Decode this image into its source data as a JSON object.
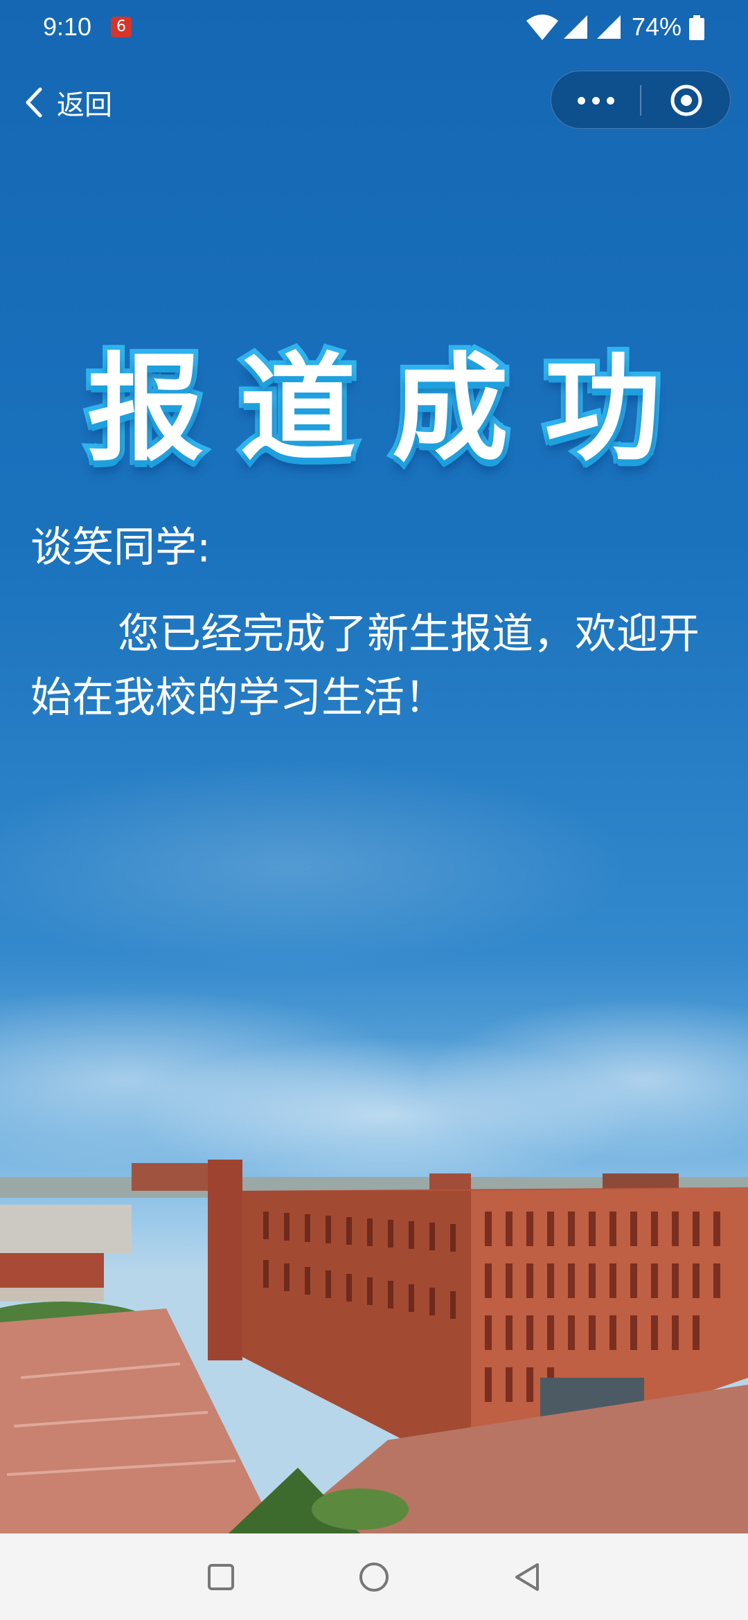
{
  "status_bar": {
    "time": "9:10",
    "battery": "74%",
    "app_badge": "6"
  },
  "nav": {
    "back_label": "返回"
  },
  "headline": "报道成功",
  "greeting": "谈笑同学:",
  "message": "您已经完成了新生报道，欢迎开始在我校的学习生活！",
  "icons": [
    "wifi-icon",
    "signal-icon",
    "battery-icon",
    "back-chevron-icon",
    "more-dots-icon",
    "close-target-icon",
    "recent-apps-icon",
    "home-icon",
    "back-triangle-icon"
  ],
  "colors": {
    "sky_top": "#1567b3",
    "headline_stroke": "#2fb3ee",
    "capsule": "#0e4f8e",
    "brick": "#b4533a"
  }
}
